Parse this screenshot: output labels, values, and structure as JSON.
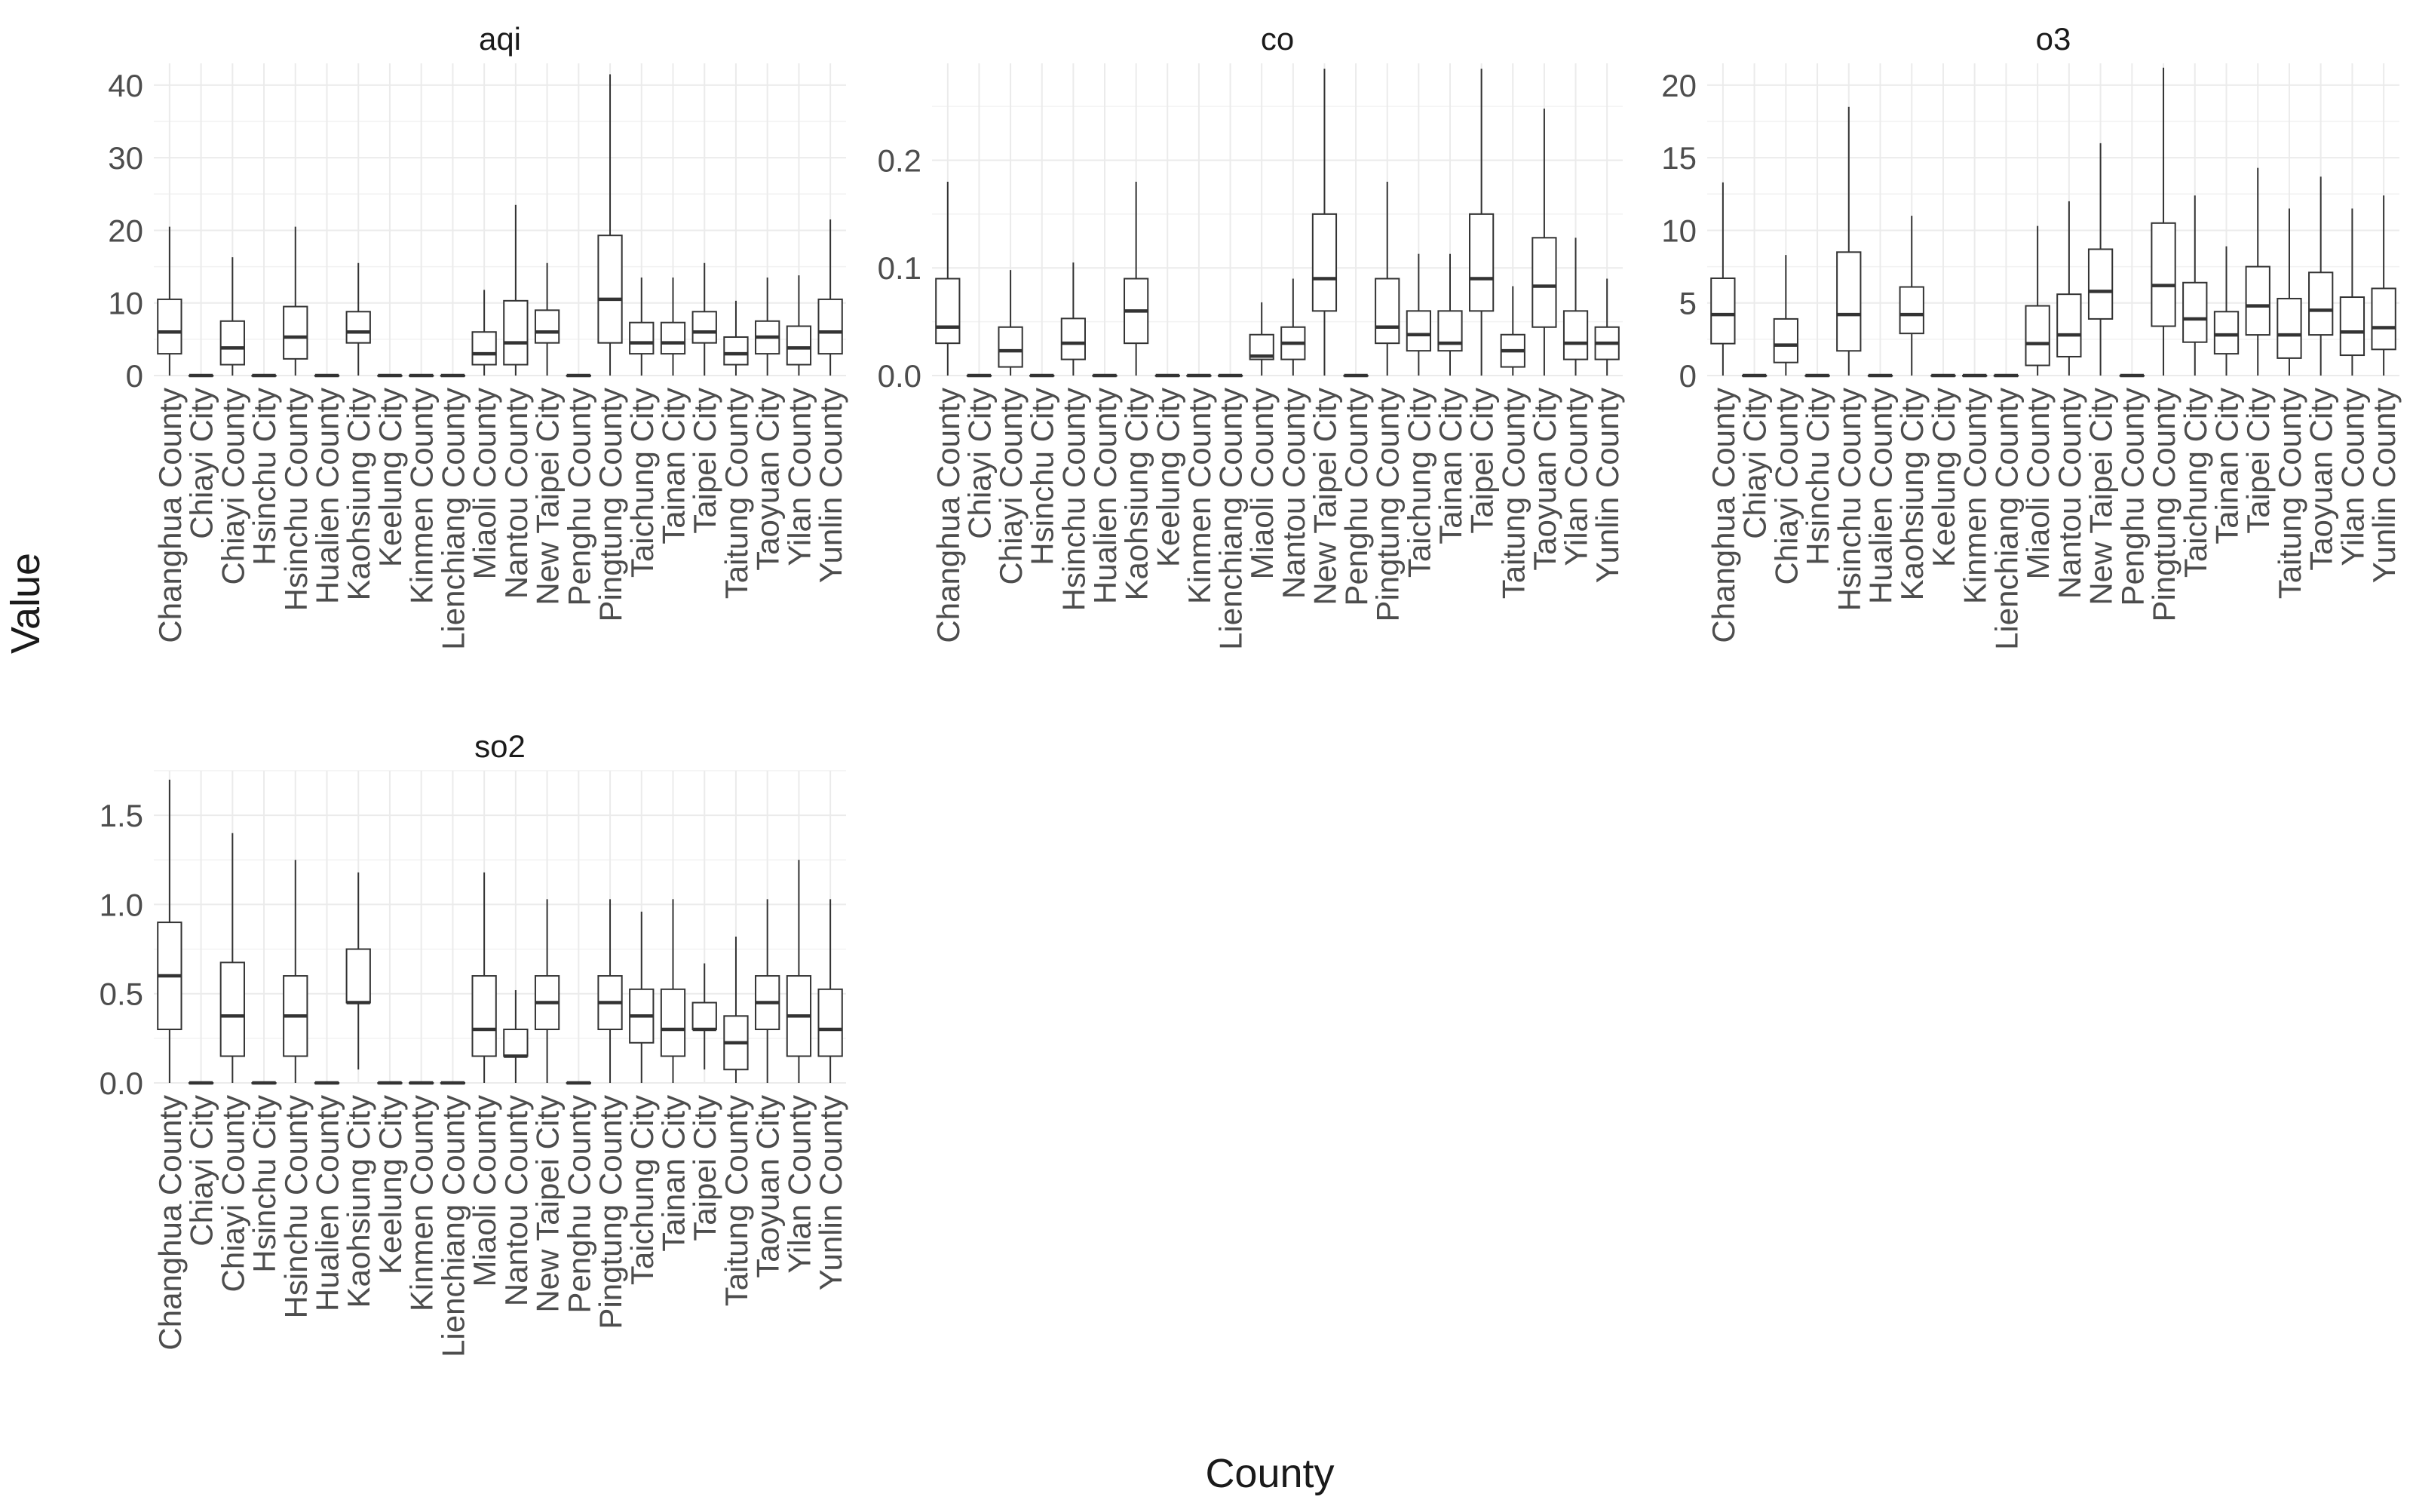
{
  "y_axis_title": "Value",
  "x_axis_title": "County",
  "chart_data": {
    "type": "box",
    "ylabel": "Value",
    "xlabel": "County",
    "grid": true,
    "legend": "none",
    "categories": [
      "Changhua County",
      "Chiayi City",
      "Chiayi County",
      "Hsinchu City",
      "Hsinchu County",
      "Hualien County",
      "Kaohsiung City",
      "Keelung City",
      "Kinmen County",
      "Lienchiang County",
      "Miaoli County",
      "Nantou County",
      "New Taipei City",
      "Penghu County",
      "Pingtung County",
      "Taichung City",
      "Tainan City",
      "Taipei City",
      "Taitung County",
      "Taoyuan City",
      "Yilan County",
      "Yunlin County"
    ],
    "facets": [
      {
        "title": "aqi",
        "ylim": [
          0,
          43
        ],
        "yticks": [
          0,
          10,
          20,
          30,
          40
        ],
        "ytick_labels": [
          "0",
          "10",
          "20",
          "30",
          "40"
        ],
        "boxes": [
          {
            "min": 0,
            "q1": 3,
            "median": 6,
            "q3": 10.5,
            "max": 20.5
          },
          {
            "min": 0,
            "q1": 0,
            "median": 0,
            "q3": 0,
            "max": 0
          },
          {
            "min": 0,
            "q1": 1.5,
            "median": 3.8,
            "q3": 7.5,
            "max": 16.3
          },
          {
            "min": 0,
            "q1": 0,
            "median": 0,
            "q3": 0,
            "max": 0
          },
          {
            "min": 0,
            "q1": 2.3,
            "median": 5.3,
            "q3": 9.5,
            "max": 20.5
          },
          {
            "min": 0,
            "q1": 0,
            "median": 0,
            "q3": 0,
            "max": 0
          },
          {
            "min": 0,
            "q1": 4.5,
            "median": 6,
            "q3": 8.8,
            "max": 15.5
          },
          {
            "min": 0,
            "q1": 0,
            "median": 0,
            "q3": 0,
            "max": 0
          },
          {
            "min": 0,
            "q1": 0,
            "median": 0,
            "q3": 0,
            "max": 0
          },
          {
            "min": 0,
            "q1": 0,
            "median": 0,
            "q3": 0,
            "max": 0
          },
          {
            "min": 0,
            "q1": 1.5,
            "median": 3,
            "q3": 6,
            "max": 11.8
          },
          {
            "min": 0,
            "q1": 1.5,
            "median": 4.5,
            "q3": 10.3,
            "max": 23.5
          },
          {
            "min": 0,
            "q1": 4.5,
            "median": 6,
            "q3": 9,
            "max": 15.5
          },
          {
            "min": 0,
            "q1": 0,
            "median": 0,
            "q3": 0,
            "max": 0
          },
          {
            "min": 0,
            "q1": 4.5,
            "median": 10.5,
            "q3": 19.3,
            "max": 41.5
          },
          {
            "min": 0,
            "q1": 3,
            "median": 4.5,
            "q3": 7.3,
            "max": 13.5
          },
          {
            "min": 0,
            "q1": 3,
            "median": 4.5,
            "q3": 7.3,
            "max": 13.5
          },
          {
            "min": 0,
            "q1": 4.5,
            "median": 6,
            "q3": 8.8,
            "max": 15.5
          },
          {
            "min": 0,
            "q1": 1.5,
            "median": 3,
            "q3": 5.3,
            "max": 10.3
          },
          {
            "min": 0,
            "q1": 3,
            "median": 5.3,
            "q3": 7.5,
            "max": 13.5
          },
          {
            "min": 0,
            "q1": 1.5,
            "median": 3.8,
            "q3": 6.8,
            "max": 13.8
          },
          {
            "min": 0,
            "q1": 3,
            "median": 6,
            "q3": 10.5,
            "max": 21.5
          }
        ]
      },
      {
        "title": "co",
        "ylim": [
          0,
          0.29
        ],
        "yticks": [
          0,
          0.1,
          0.2
        ],
        "ytick_labels": [
          "0.0",
          "0.1",
          "0.2"
        ],
        "boxes": [
          {
            "min": 0,
            "q1": 0.03,
            "median": 0.045,
            "q3": 0.09,
            "max": 0.18
          },
          {
            "min": 0,
            "q1": 0,
            "median": 0,
            "q3": 0,
            "max": 0
          },
          {
            "min": 0,
            "q1": 0.008,
            "median": 0.023,
            "q3": 0.045,
            "max": 0.098
          },
          {
            "min": 0,
            "q1": 0,
            "median": 0,
            "q3": 0,
            "max": 0
          },
          {
            "min": 0,
            "q1": 0.015,
            "median": 0.03,
            "q3": 0.053,
            "max": 0.105
          },
          {
            "min": 0,
            "q1": 0,
            "median": 0,
            "q3": 0,
            "max": 0
          },
          {
            "min": 0,
            "q1": 0.03,
            "median": 0.06,
            "q3": 0.09,
            "max": 0.18
          },
          {
            "min": 0,
            "q1": 0,
            "median": 0,
            "q3": 0,
            "max": 0
          },
          {
            "min": 0,
            "q1": 0,
            "median": 0,
            "q3": 0,
            "max": 0
          },
          {
            "min": 0,
            "q1": 0,
            "median": 0,
            "q3": 0,
            "max": 0
          },
          {
            "min": 0,
            "q1": 0.015,
            "median": 0.018,
            "q3": 0.038,
            "max": 0.068
          },
          {
            "min": 0,
            "q1": 0.015,
            "median": 0.03,
            "q3": 0.045,
            "max": 0.09
          },
          {
            "min": 0,
            "q1": 0.06,
            "median": 0.09,
            "q3": 0.15,
            "max": 0.285
          },
          {
            "min": 0,
            "q1": 0,
            "median": 0,
            "q3": 0,
            "max": 0
          },
          {
            "min": 0,
            "q1": 0.03,
            "median": 0.045,
            "q3": 0.09,
            "max": 0.18
          },
          {
            "min": 0,
            "q1": 0.023,
            "median": 0.038,
            "q3": 0.06,
            "max": 0.113
          },
          {
            "min": 0,
            "q1": 0.023,
            "median": 0.03,
            "q3": 0.06,
            "max": 0.113
          },
          {
            "min": 0,
            "q1": 0.06,
            "median": 0.09,
            "q3": 0.15,
            "max": 0.285
          },
          {
            "min": 0,
            "q1": 0.008,
            "median": 0.023,
            "q3": 0.038,
            "max": 0.083
          },
          {
            "min": 0,
            "q1": 0.045,
            "median": 0.083,
            "q3": 0.128,
            "max": 0.248
          },
          {
            "min": 0,
            "q1": 0.015,
            "median": 0.03,
            "q3": 0.06,
            "max": 0.128
          },
          {
            "min": 0,
            "q1": 0.015,
            "median": 0.03,
            "q3": 0.045,
            "max": 0.09
          }
        ]
      },
      {
        "title": "o3",
        "ylim": [
          0,
          21.5
        ],
        "yticks": [
          0,
          5,
          10,
          15,
          20
        ],
        "ytick_labels": [
          "0",
          "5",
          "10",
          "15",
          "20"
        ],
        "boxes": [
          {
            "min": 0,
            "q1": 2.2,
            "median": 4.2,
            "q3": 6.7,
            "max": 13.3
          },
          {
            "min": 0,
            "q1": 0,
            "median": 0,
            "q3": 0,
            "max": 0
          },
          {
            "min": 0,
            "q1": 0.9,
            "median": 2.1,
            "q3": 3.9,
            "max": 8.3
          },
          {
            "min": 0,
            "q1": 0,
            "median": 0,
            "q3": 0,
            "max": 0
          },
          {
            "min": 0,
            "q1": 1.7,
            "median": 4.2,
            "q3": 8.5,
            "max": 18.5
          },
          {
            "min": 0,
            "q1": 0,
            "median": 0,
            "q3": 0,
            "max": 0
          },
          {
            "min": 0,
            "q1": 2.9,
            "median": 4.2,
            "q3": 6.1,
            "max": 11
          },
          {
            "min": 0,
            "q1": 0,
            "median": 0,
            "q3": 0,
            "max": 0
          },
          {
            "min": 0,
            "q1": 0,
            "median": 0,
            "q3": 0,
            "max": 0
          },
          {
            "min": 0,
            "q1": 0,
            "median": 0,
            "q3": 0,
            "max": 0
          },
          {
            "min": 0,
            "q1": 0.7,
            "median": 2.2,
            "q3": 4.8,
            "max": 10.3
          },
          {
            "min": 0,
            "q1": 1.3,
            "median": 2.8,
            "q3": 5.6,
            "max": 12
          },
          {
            "min": 0,
            "q1": 3.9,
            "median": 5.8,
            "q3": 8.7,
            "max": 16
          },
          {
            "min": 0,
            "q1": 0,
            "median": 0,
            "q3": 0,
            "max": 0
          },
          {
            "min": 0,
            "q1": 3.4,
            "median": 6.2,
            "q3": 10.5,
            "max": 21.2
          },
          {
            "min": 0,
            "q1": 2.3,
            "median": 3.9,
            "q3": 6.4,
            "max": 12.4
          },
          {
            "min": 0,
            "q1": 1.5,
            "median": 2.8,
            "q3": 4.4,
            "max": 8.9
          },
          {
            "min": 0,
            "q1": 2.8,
            "median": 4.8,
            "q3": 7.5,
            "max": 14.3
          },
          {
            "min": 0,
            "q1": 1.2,
            "median": 2.8,
            "q3": 5.3,
            "max": 11.5
          },
          {
            "min": 0,
            "q1": 2.8,
            "median": 4.5,
            "q3": 7.1,
            "max": 13.7
          },
          {
            "min": 0,
            "q1": 1.4,
            "median": 3,
            "q3": 5.4,
            "max": 11.5
          },
          {
            "min": 0,
            "q1": 1.8,
            "median": 3.3,
            "q3": 6,
            "max": 12.4
          }
        ]
      },
      {
        "title": "so2",
        "ylim": [
          0,
          1.75
        ],
        "yticks": [
          0,
          0.5,
          1,
          1.5
        ],
        "ytick_labels": [
          "0.0",
          "0.5",
          "1.0",
          "1.5"
        ],
        "boxes": [
          {
            "min": 0,
            "q1": 0.3,
            "median": 0.6,
            "q3": 0.9,
            "max": 1.7
          },
          {
            "min": 0,
            "q1": 0,
            "median": 0,
            "q3": 0,
            "max": 0
          },
          {
            "min": 0,
            "q1": 0.15,
            "median": 0.375,
            "q3": 0.675,
            "max": 1.4
          },
          {
            "min": 0,
            "q1": 0,
            "median": 0,
            "q3": 0,
            "max": 0
          },
          {
            "min": 0,
            "q1": 0.15,
            "median": 0.375,
            "q3": 0.6,
            "max": 1.25
          },
          {
            "min": 0,
            "q1": 0,
            "median": 0,
            "q3": 0,
            "max": 0
          },
          {
            "min": 0.075,
            "q1": 0.45,
            "median": 0.45,
            "q3": 0.75,
            "max": 1.18
          },
          {
            "min": 0,
            "q1": 0,
            "median": 0,
            "q3": 0,
            "max": 0
          },
          {
            "min": 0,
            "q1": 0,
            "median": 0,
            "q3": 0,
            "max": 0
          },
          {
            "min": 0,
            "q1": 0,
            "median": 0,
            "q3": 0,
            "max": 0
          },
          {
            "min": 0,
            "q1": 0.15,
            "median": 0.3,
            "q3": 0.6,
            "max": 1.18
          },
          {
            "min": 0,
            "q1": 0.15,
            "median": 0.15,
            "q3": 0.3,
            "max": 0.52
          },
          {
            "min": 0,
            "q1": 0.3,
            "median": 0.45,
            "q3": 0.6,
            "max": 1.03
          },
          {
            "min": 0,
            "q1": 0,
            "median": 0,
            "q3": 0,
            "max": 0
          },
          {
            "min": 0,
            "q1": 0.3,
            "median": 0.45,
            "q3": 0.6,
            "max": 1.03
          },
          {
            "min": 0,
            "q1": 0.225,
            "median": 0.375,
            "q3": 0.525,
            "max": 0.96
          },
          {
            "min": 0,
            "q1": 0.15,
            "median": 0.3,
            "q3": 0.525,
            "max": 1.03
          },
          {
            "min": 0.075,
            "q1": 0.3,
            "median": 0.3,
            "q3": 0.45,
            "max": 0.67
          },
          {
            "min": 0,
            "q1": 0.075,
            "median": 0.225,
            "q3": 0.375,
            "max": 0.82
          },
          {
            "min": 0,
            "q1": 0.3,
            "median": 0.45,
            "q3": 0.6,
            "max": 1.03
          },
          {
            "min": 0,
            "q1": 0.15,
            "median": 0.375,
            "q3": 0.6,
            "max": 1.25
          },
          {
            "min": 0,
            "q1": 0.15,
            "median": 0.3,
            "q3": 0.525,
            "max": 1.03
          }
        ]
      }
    ]
  }
}
